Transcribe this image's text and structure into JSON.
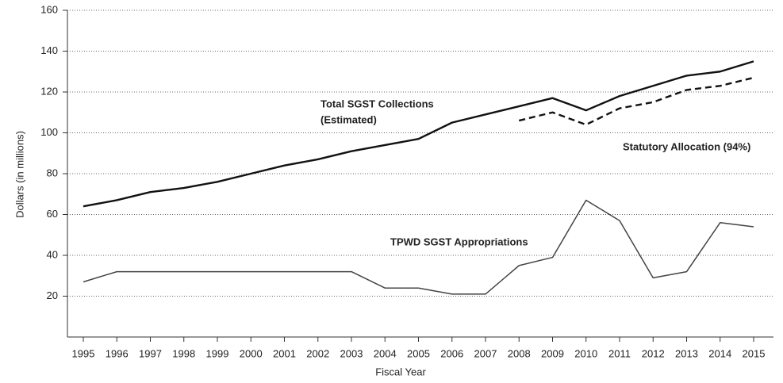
{
  "chart_data": {
    "type": "line",
    "x_label": "Fiscal Year",
    "y_label": "Dollars (in millions)",
    "categories": [
      "1995",
      "1996",
      "1997",
      "1998",
      "1999",
      "2000",
      "2001",
      "2002",
      "2003",
      "2004",
      "2005",
      "2006",
      "2007",
      "2008",
      "2009",
      "2010",
      "2011",
      "2012",
      "2013",
      "2014",
      "2015"
    ],
    "series": [
      {
        "name": "Total SGST Collections",
        "note": "(Estimated)",
        "color": "#111111",
        "style": "solid",
        "values": [
          64,
          67,
          71,
          73,
          76,
          80,
          84,
          87,
          91,
          94,
          97,
          105,
          109,
          113,
          117,
          111,
          118,
          123,
          128,
          130,
          135
        ]
      },
      {
        "name": "Statutory Allocation (94%)",
        "color": "#111111",
        "style": "dashed",
        "values": [
          null,
          null,
          null,
          null,
          null,
          null,
          null,
          null,
          null,
          null,
          null,
          null,
          null,
          106,
          110,
          104,
          112,
          115,
          121,
          123,
          127
        ]
      },
      {
        "name": "TPWD SGST Appropriations",
        "color": "#444444",
        "style": "thin",
        "values": [
          27,
          32,
          32,
          32,
          32,
          32,
          32,
          32,
          32,
          24,
          24,
          21,
          21,
          35,
          39,
          67,
          57,
          29,
          32,
          56,
          54
        ]
      }
    ],
    "ylim": [
      0,
      160
    ],
    "yticks": [
      20,
      40,
      60,
      80,
      100,
      120,
      140,
      160
    ],
    "grid": true
  }
}
